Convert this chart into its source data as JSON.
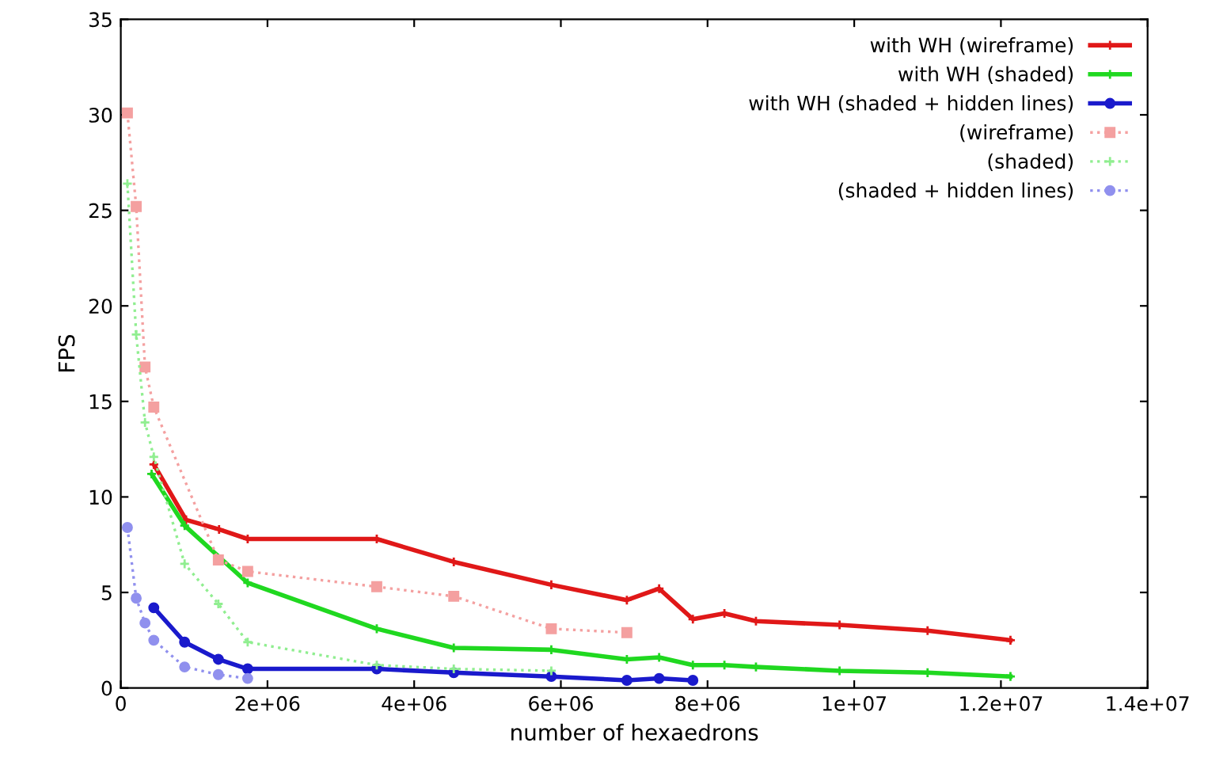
{
  "chart_data": {
    "type": "line",
    "xlabel": "number of hexaedrons",
    "ylabel": "FPS",
    "xlim": [
      0,
      14000000
    ],
    "ylim": [
      0,
      35
    ],
    "xticks": [
      0,
      {
        "value": 2000000,
        "label": "2e+06"
      },
      {
        "value": 4000000,
        "label": "4e+06"
      },
      {
        "value": 6000000,
        "label": "6e+06"
      },
      {
        "value": 8000000,
        "label": "8e+06"
      },
      {
        "value": 10000000,
        "label": "1e+07"
      },
      {
        "value": 12000000,
        "label": "1.2e+07"
      },
      {
        "value": 14000000,
        "label": "1.4e+07"
      }
    ],
    "yticks": [
      0,
      5,
      10,
      15,
      20,
      25,
      30,
      35
    ],
    "grid": false,
    "legend": "top right",
    "series": [
      {
        "name": "with WH (wireframe)",
        "color": "#e01818",
        "marker": "cross",
        "line_style": "solid",
        "x": [
          450000,
          890000,
          1340000,
          1730000,
          3490000,
          4540000,
          5870000,
          6900000,
          7340000,
          7800000,
          8230000,
          8660000,
          9800000,
          11000000,
          12130000
        ],
        "values": [
          11.7,
          8.8,
          8.3,
          7.8,
          7.8,
          6.6,
          5.4,
          4.6,
          5.2,
          3.6,
          3.9,
          3.5,
          3.3,
          3.0,
          2.5
        ]
      },
      {
        "name": "with WH (shaded)",
        "color": "#20d820",
        "marker": "cross",
        "line_style": "solid",
        "x": [
          420000,
          870000,
          1730000,
          3490000,
          4540000,
          5870000,
          6900000,
          7340000,
          7800000,
          8230000,
          8660000,
          9800000,
          11000000,
          12130000
        ],
        "values": [
          11.2,
          8.5,
          5.5,
          3.1,
          2.1,
          2.0,
          1.5,
          1.6,
          1.2,
          1.2,
          1.1,
          0.9,
          0.8,
          0.6
        ]
      },
      {
        "name": "with WH (shaded + hidden lines)",
        "color": "#1a1acc",
        "marker": "circle",
        "line_style": "solid",
        "x": [
          450000,
          870000,
          1330000,
          1730000,
          3490000,
          4540000,
          5870000,
          6900000,
          7340000,
          7800000
        ],
        "values": [
          4.2,
          2.4,
          1.5,
          1.0,
          1.0,
          0.8,
          0.6,
          0.4,
          0.5,
          0.4
        ]
      },
      {
        "name": "(wireframe)",
        "color": "#f4a0a0",
        "marker": "square",
        "line_style": "dotted",
        "x": [
          90000,
          210000,
          330000,
          450000,
          1330000,
          1730000,
          3490000,
          4540000,
          5870000,
          6900000
        ],
        "values": [
          30.1,
          25.2,
          16.8,
          14.7,
          6.7,
          6.1,
          5.3,
          4.8,
          3.1,
          2.9
        ]
      },
      {
        "name": "(shaded)",
        "color": "#90ee90",
        "marker": "cross",
        "line_style": "dotted",
        "x": [
          90000,
          210000,
          330000,
          450000,
          870000,
          1330000,
          1730000,
          3490000,
          4540000,
          5870000
        ],
        "values": [
          26.4,
          18.5,
          13.9,
          12.1,
          6.5,
          4.4,
          2.4,
          1.2,
          1.0,
          0.9
        ]
      },
      {
        "name": "(shaded + hidden lines)",
        "color": "#9090ee",
        "marker": "circle",
        "line_style": "dotted",
        "x": [
          90000,
          210000,
          330000,
          450000,
          870000,
          1330000,
          1730000
        ],
        "values": [
          8.4,
          4.7,
          3.4,
          2.5,
          1.1,
          0.7,
          0.5
        ]
      }
    ]
  }
}
